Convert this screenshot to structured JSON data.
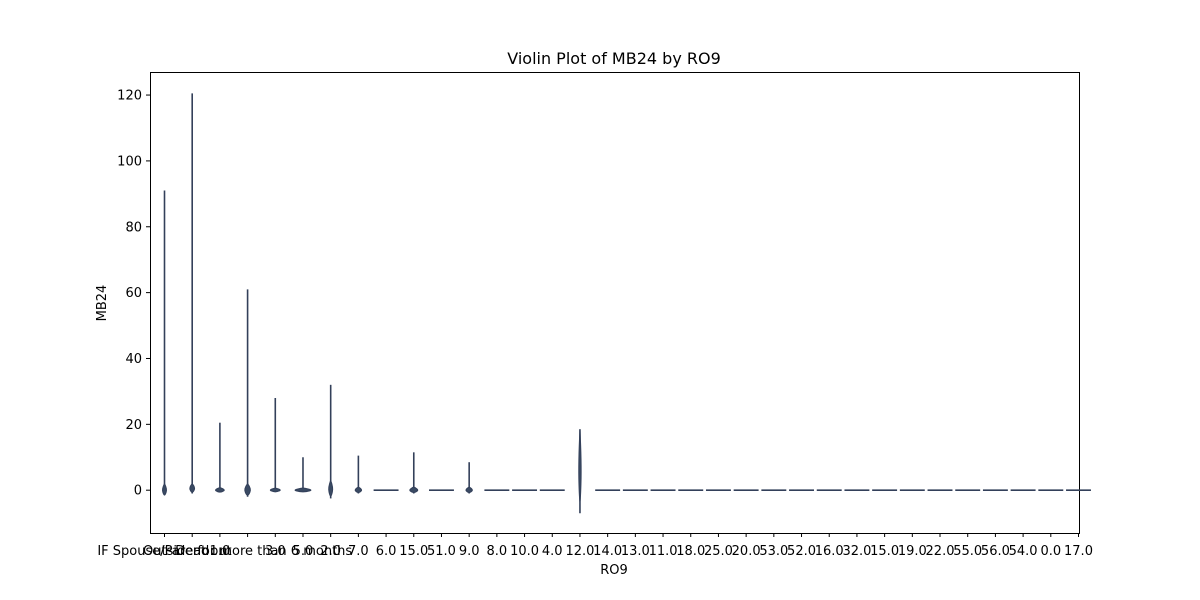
{
  "chart_data": {
    "type": "violin",
    "title": "Violin Plot of MB24 by RO9",
    "xlabel": "RO9",
    "ylabel": "MB24",
    "ylim": [
      -13,
      127
    ],
    "yticks": [
      0,
      20,
      40,
      60,
      80,
      100,
      120
    ],
    "colors": {
      "violin_fill": "#3a4a63",
      "violin_edge": "#33405a",
      "axis": "#000000"
    },
    "categories": [
      "IF Spouse/Parent out",
      "Dead",
      "1.0",
      "Outside for more than 6 months",
      "3.0",
      "5.0",
      "2.0",
      "7.0",
      "6.0",
      "15.0",
      "51.0",
      "9.0",
      "8.0",
      "10.0",
      "4.0",
      "12.0",
      "14.0",
      "13.0",
      "11.0",
      "18.0",
      "25.0",
      "20.0",
      "53.0",
      "52.0",
      "16.0",
      "32.0",
      "15.0",
      "19.0",
      "22.0",
      "55.0",
      "56.0",
      "54.0",
      "0.0",
      "17.0"
    ],
    "violins": [
      {
        "min": 0,
        "max": 91,
        "half_width": 0.1,
        "body": [
          -2,
          2
        ]
      },
      {
        "min": -1,
        "max": 120.5,
        "half_width": 0.12,
        "body": [
          -1,
          2
        ]
      },
      {
        "min": -0.5,
        "max": 20.5,
        "half_width": 0.22,
        "body": [
          -0.8,
          0.8
        ]
      },
      {
        "min": -2,
        "max": 61,
        "half_width": 0.14,
        "body": [
          -2,
          2
        ]
      },
      {
        "min": -0.3,
        "max": 28,
        "half_width": 0.25,
        "body": [
          -0.5,
          0.5
        ]
      },
      {
        "min": -0.3,
        "max": 10,
        "half_width": 0.4,
        "body": [
          -0.4,
          0.4
        ]
      },
      {
        "min": -2.5,
        "max": 32,
        "half_width": 0.1,
        "body": [
          -2.5,
          3
        ]
      },
      {
        "min": -1,
        "max": 10.5,
        "half_width": 0.16,
        "body": [
          -1,
          1
        ]
      },
      {
        "min": 0,
        "max": 0,
        "half_width": 0.45,
        "body": [
          0,
          0
        ]
      },
      {
        "min": -1,
        "max": 11.5,
        "half_width": 0.2,
        "body": [
          -1,
          1
        ]
      },
      {
        "min": 0,
        "max": 0,
        "half_width": 0.45,
        "body": [
          0,
          0
        ]
      },
      {
        "min": -1,
        "max": 8.5,
        "half_width": 0.16,
        "body": [
          -1,
          1
        ]
      },
      {
        "min": 0,
        "max": 0,
        "half_width": 0.45,
        "body": [
          0,
          0
        ]
      },
      {
        "min": 0,
        "max": 0,
        "half_width": 0.45,
        "body": [
          0,
          0
        ]
      },
      {
        "min": 0,
        "max": 0,
        "half_width": 0.45,
        "body": [
          0,
          0
        ]
      },
      {
        "min": -7,
        "max": 18.5,
        "half_width": 0.06,
        "body": [
          -7,
          18.5
        ]
      },
      {
        "min": 0,
        "max": 0,
        "half_width": 0.45,
        "body": [
          0,
          0
        ]
      },
      {
        "min": 0,
        "max": 0,
        "half_width": 0.45,
        "body": [
          0,
          0
        ]
      },
      {
        "min": 0,
        "max": 0,
        "half_width": 0.45,
        "body": [
          0,
          0
        ]
      },
      {
        "min": 0,
        "max": 0,
        "half_width": 0.45,
        "body": [
          0,
          0
        ]
      },
      {
        "min": 0,
        "max": 0,
        "half_width": 0.45,
        "body": [
          0,
          0
        ]
      },
      {
        "min": 0,
        "max": 0,
        "half_width": 0.45,
        "body": [
          0,
          0
        ]
      },
      {
        "min": 0,
        "max": 0,
        "half_width": 0.45,
        "body": [
          0,
          0
        ]
      },
      {
        "min": 0,
        "max": 0,
        "half_width": 0.45,
        "body": [
          0,
          0
        ]
      },
      {
        "min": 0,
        "max": 0,
        "half_width": 0.45,
        "body": [
          0,
          0
        ]
      },
      {
        "min": 0,
        "max": 0,
        "half_width": 0.45,
        "body": [
          0,
          0
        ]
      },
      {
        "min": 0,
        "max": 0,
        "half_width": 0.45,
        "body": [
          0,
          0
        ]
      },
      {
        "min": 0,
        "max": 0,
        "half_width": 0.45,
        "body": [
          0,
          0
        ]
      },
      {
        "min": 0,
        "max": 0,
        "half_width": 0.45,
        "body": [
          0,
          0
        ]
      },
      {
        "min": 0,
        "max": 0,
        "half_width": 0.45,
        "body": [
          0,
          0
        ]
      },
      {
        "min": 0,
        "max": 0,
        "half_width": 0.45,
        "body": [
          0,
          0
        ]
      },
      {
        "min": 0,
        "max": 0,
        "half_width": 0.45,
        "body": [
          0,
          0
        ]
      },
      {
        "min": 0,
        "max": 0,
        "half_width": 0.45,
        "body": [
          0,
          0
        ]
      },
      {
        "min": 0,
        "max": 0,
        "half_width": 0.45,
        "body": [
          0,
          0
        ]
      }
    ]
  }
}
